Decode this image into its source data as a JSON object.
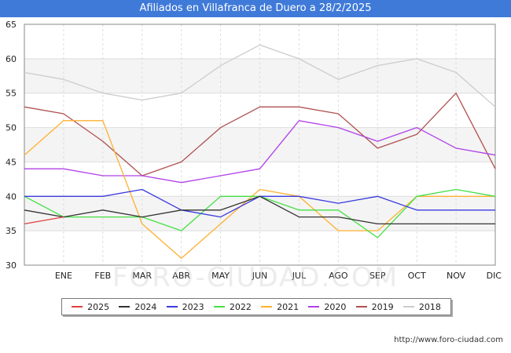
{
  "header": {
    "title": "Afiliados en Villafranca de Duero a 28/2/2025"
  },
  "watermark": "FORO-CIUDAD.COM",
  "footer": {
    "url": "http://www.foro-ciudad.com"
  },
  "chart_data": {
    "type": "line",
    "title": "Afiliados en Villafranca de Duero a 28/2/2025",
    "categories": [
      "",
      "ENE",
      "FEB",
      "MAR",
      "ABR",
      "MAY",
      "JUN",
      "JUL",
      "AGO",
      "SEP",
      "OCT",
      "NOV",
      "DIC"
    ],
    "ylim": [
      30,
      65
    ],
    "yticks": [
      30,
      35,
      40,
      45,
      50,
      55,
      60,
      65
    ],
    "grid": true,
    "legend_position": "bottom",
    "series": [
      {
        "name": "2025",
        "color": "#e04040",
        "values": [
          36,
          37,
          null,
          null,
          null,
          null,
          null,
          null,
          null,
          null,
          null,
          null,
          null
        ]
      },
      {
        "name": "2024",
        "color": "#333333",
        "values": [
          38,
          37,
          38,
          37,
          38,
          38,
          40,
          37,
          37,
          36,
          36,
          36,
          36
        ]
      },
      {
        "name": "2023",
        "color": "#3a3ae0",
        "values": [
          40,
          40,
          40,
          41,
          38,
          37,
          40,
          40,
          39,
          40,
          38,
          38,
          38
        ]
      },
      {
        "name": "2022",
        "color": "#44e044",
        "values": [
          40,
          37,
          37,
          37,
          35,
          40,
          40,
          38,
          38,
          34,
          40,
          41,
          40
        ]
      },
      {
        "name": "2021",
        "color": "#ffb030",
        "values": [
          46,
          51,
          51,
          36,
          31,
          36,
          41,
          40,
          35,
          35,
          40,
          40,
          40
        ]
      },
      {
        "name": "2020",
        "color": "#b040e8",
        "values": [
          44,
          44,
          43,
          43,
          42,
          43,
          44,
          51,
          50,
          48,
          50,
          47,
          46
        ]
      },
      {
        "name": "2019",
        "color": "#b05050",
        "values": [
          53,
          52,
          48,
          43,
          45,
          50,
          53,
          53,
          52,
          47,
          49,
          55,
          44
        ]
      },
      {
        "name": "2018",
        "color": "#cccccc",
        "values": [
          58,
          57,
          55,
          54,
          55,
          59,
          62,
          60,
          57,
          59,
          60,
          58,
          53
        ]
      }
    ]
  }
}
